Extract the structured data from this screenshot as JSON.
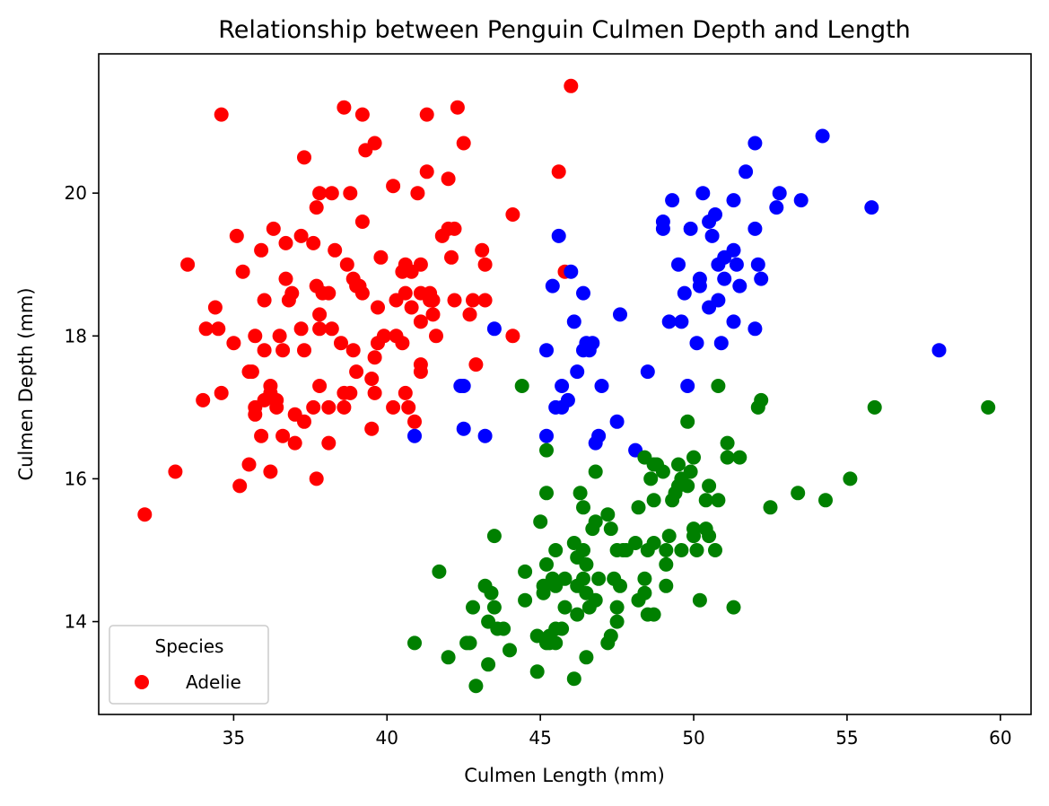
{
  "chart_data": {
    "type": "scatter",
    "title": "Relationship between Penguin Culmen Depth and Length",
    "xlabel": "Culmen Length (mm)",
    "ylabel": "Culmen Depth (mm)",
    "xlim": [
      30.6,
      61.0
    ],
    "ylim": [
      12.7,
      21.95
    ],
    "xticks": [
      35,
      40,
      45,
      50,
      55,
      60
    ],
    "yticks": [
      14,
      16,
      18,
      20
    ],
    "grid": false,
    "legend": {
      "title": "Species",
      "placement": "lower-left",
      "entries": [
        {
          "label": "Adelie",
          "color": "#ff0000"
        }
      ]
    },
    "series": [
      {
        "color": "#ff0000",
        "points": [
          [
            32.1,
            15.5
          ],
          [
            33.1,
            16.1
          ],
          [
            33.5,
            19.0
          ],
          [
            34.0,
            17.1
          ],
          [
            34.1,
            18.1
          ],
          [
            34.4,
            18.4
          ],
          [
            34.5,
            18.1
          ],
          [
            34.6,
            21.1
          ],
          [
            34.6,
            17.2
          ],
          [
            35.0,
            17.9
          ],
          [
            35.1,
            19.4
          ],
          [
            35.2,
            15.9
          ],
          [
            35.3,
            18.9
          ],
          [
            35.5,
            16.2
          ],
          [
            35.5,
            17.5
          ],
          [
            35.6,
            17.5
          ],
          [
            35.7,
            18.0
          ],
          [
            35.7,
            17.0
          ],
          [
            35.7,
            16.9
          ],
          [
            35.9,
            19.2
          ],
          [
            35.9,
            16.6
          ],
          [
            36.0,
            17.8
          ],
          [
            36.0,
            18.5
          ],
          [
            36.0,
            17.1
          ],
          [
            36.2,
            17.3
          ],
          [
            36.2,
            16.1
          ],
          [
            36.2,
            17.2
          ],
          [
            36.3,
            19.5
          ],
          [
            36.4,
            17.0
          ],
          [
            36.4,
            17.1
          ],
          [
            36.5,
            18.0
          ],
          [
            36.6,
            17.8
          ],
          [
            36.6,
            16.6
          ],
          [
            36.7,
            19.3
          ],
          [
            36.7,
            18.8
          ],
          [
            36.8,
            18.5
          ],
          [
            36.9,
            18.6
          ],
          [
            37.0,
            16.9
          ],
          [
            37.0,
            16.5
          ],
          [
            37.2,
            19.4
          ],
          [
            37.2,
            18.1
          ],
          [
            37.3,
            20.5
          ],
          [
            37.3,
            16.8
          ],
          [
            37.3,
            17.8
          ],
          [
            37.6,
            19.3
          ],
          [
            37.6,
            17.0
          ],
          [
            37.7,
            16.0
          ],
          [
            37.7,
            18.7
          ],
          [
            37.7,
            19.8
          ],
          [
            37.8,
            20.0
          ],
          [
            37.8,
            18.3
          ],
          [
            37.8,
            18.1
          ],
          [
            37.8,
            17.3
          ],
          [
            37.9,
            18.6
          ],
          [
            38.1,
            18.6
          ],
          [
            38.1,
            16.5
          ],
          [
            38.1,
            17.0
          ],
          [
            38.2,
            20.0
          ],
          [
            38.2,
            18.1
          ],
          [
            38.3,
            19.2
          ],
          [
            38.5,
            17.9
          ],
          [
            38.6,
            21.2
          ],
          [
            38.6,
            17.2
          ],
          [
            38.6,
            17.0
          ],
          [
            38.7,
            19.0
          ],
          [
            38.8,
            17.2
          ],
          [
            38.8,
            20.0
          ],
          [
            38.9,
            17.8
          ],
          [
            38.9,
            18.8
          ],
          [
            39.0,
            17.5
          ],
          [
            39.0,
            18.7
          ],
          [
            39.1,
            18.7
          ],
          [
            39.2,
            19.6
          ],
          [
            39.2,
            18.6
          ],
          [
            39.2,
            21.1
          ],
          [
            39.3,
            20.6
          ],
          [
            39.5,
            17.4
          ],
          [
            39.5,
            16.7
          ],
          [
            39.6,
            17.7
          ],
          [
            39.6,
            20.7
          ],
          [
            39.6,
            17.2
          ],
          [
            39.7,
            18.4
          ],
          [
            39.7,
            17.9
          ],
          [
            39.8,
            19.1
          ],
          [
            39.9,
            18.0
          ],
          [
            40.2,
            17.0
          ],
          [
            40.2,
            20.1
          ],
          [
            40.3,
            18.5
          ],
          [
            40.3,
            18.0
          ],
          [
            40.5,
            17.9
          ],
          [
            40.5,
            18.9
          ],
          [
            40.6,
            19.0
          ],
          [
            40.6,
            18.6
          ],
          [
            40.6,
            17.2
          ],
          [
            40.7,
            17.0
          ],
          [
            40.8,
            18.4
          ],
          [
            40.8,
            18.9
          ],
          [
            40.9,
            16.8
          ],
          [
            41.0,
            20.0
          ],
          [
            41.1,
            17.5
          ],
          [
            41.1,
            18.6
          ],
          [
            41.1,
            19.0
          ],
          [
            41.1,
            18.2
          ],
          [
            41.1,
            17.6
          ],
          [
            41.3,
            20.3
          ],
          [
            41.3,
            21.1
          ],
          [
            41.4,
            18.6
          ],
          [
            41.4,
            18.5
          ],
          [
            41.5,
            18.3
          ],
          [
            41.5,
            18.5
          ],
          [
            41.6,
            18.0
          ],
          [
            41.8,
            19.4
          ],
          [
            42.0,
            20.2
          ],
          [
            42.0,
            19.5
          ],
          [
            42.1,
            19.1
          ],
          [
            42.2,
            19.5
          ],
          [
            42.2,
            18.5
          ],
          [
            42.3,
            21.2
          ],
          [
            42.5,
            20.7
          ],
          [
            42.7,
            18.3
          ],
          [
            42.8,
            18.5
          ],
          [
            42.9,
            17.6
          ],
          [
            43.1,
            19.2
          ],
          [
            43.2,
            19.0
          ],
          [
            43.2,
            18.5
          ],
          [
            44.1,
            19.7
          ],
          [
            44.1,
            18.0
          ],
          [
            45.6,
            20.3
          ],
          [
            45.8,
            18.9
          ],
          [
            46.0,
            21.5
          ]
        ]
      },
      {
        "color": "#0000ff",
        "points": [
          [
            40.9,
            16.6
          ],
          [
            42.4,
            17.3
          ],
          [
            42.5,
            17.3
          ],
          [
            42.5,
            16.7
          ],
          [
            43.2,
            16.6
          ],
          [
            43.5,
            18.1
          ],
          [
            45.2,
            17.8
          ],
          [
            45.2,
            16.6
          ],
          [
            45.4,
            18.7
          ],
          [
            45.5,
            17.0
          ],
          [
            45.6,
            19.4
          ],
          [
            45.7,
            17.3
          ],
          [
            45.7,
            17.0
          ],
          [
            45.9,
            17.1
          ],
          [
            46.0,
            18.9
          ],
          [
            46.1,
            18.2
          ],
          [
            46.2,
            17.5
          ],
          [
            46.4,
            18.6
          ],
          [
            46.4,
            17.8
          ],
          [
            46.5,
            17.9
          ],
          [
            46.6,
            17.8
          ],
          [
            46.7,
            17.9
          ],
          [
            46.8,
            16.5
          ],
          [
            46.9,
            16.6
          ],
          [
            47.0,
            17.3
          ],
          [
            47.5,
            16.8
          ],
          [
            47.6,
            18.3
          ],
          [
            48.1,
            16.4
          ],
          [
            48.5,
            17.5
          ],
          [
            49.0,
            19.5
          ],
          [
            49.0,
            19.6
          ],
          [
            49.2,
            18.2
          ],
          [
            49.3,
            19.9
          ],
          [
            49.5,
            19.0
          ],
          [
            49.6,
            18.2
          ],
          [
            49.7,
            18.6
          ],
          [
            49.8,
            17.3
          ],
          [
            49.9,
            19.5
          ],
          [
            50.1,
            17.9
          ],
          [
            50.2,
            18.8
          ],
          [
            50.2,
            18.7
          ],
          [
            50.3,
            20.0
          ],
          [
            50.5,
            18.4
          ],
          [
            50.5,
            19.6
          ],
          [
            50.6,
            19.4
          ],
          [
            50.7,
            19.7
          ],
          [
            50.8,
            18.5
          ],
          [
            50.8,
            19.0
          ],
          [
            50.9,
            17.9
          ],
          [
            51.0,
            18.8
          ],
          [
            51.0,
            19.1
          ],
          [
            51.3,
            19.9
          ],
          [
            51.3,
            19.2
          ],
          [
            51.3,
            18.2
          ],
          [
            51.4,
            19.0
          ],
          [
            51.5,
            18.7
          ],
          [
            51.7,
            20.3
          ],
          [
            52.0,
            19.5
          ],
          [
            52.0,
            18.1
          ],
          [
            52.0,
            20.7
          ],
          [
            52.1,
            19.0
          ],
          [
            52.2,
            18.8
          ],
          [
            52.7,
            19.8
          ],
          [
            52.8,
            20.0
          ],
          [
            53.5,
            19.9
          ],
          [
            54.2,
            20.8
          ],
          [
            55.8,
            19.8
          ],
          [
            58.0,
            17.8
          ]
        ]
      },
      {
        "color": "#008000",
        "points": [
          [
            40.9,
            13.7
          ],
          [
            41.7,
            14.7
          ],
          [
            42.0,
            13.5
          ],
          [
            42.6,
            13.7
          ],
          [
            42.7,
            13.7
          ],
          [
            42.8,
            14.2
          ],
          [
            42.9,
            13.1
          ],
          [
            43.2,
            14.5
          ],
          [
            43.3,
            13.4
          ],
          [
            43.3,
            14.0
          ],
          [
            43.4,
            14.4
          ],
          [
            43.5,
            14.2
          ],
          [
            43.5,
            15.2
          ],
          [
            43.6,
            13.9
          ],
          [
            43.8,
            13.9
          ],
          [
            44.0,
            13.6
          ],
          [
            44.4,
            17.3
          ],
          [
            44.5,
            14.3
          ],
          [
            44.5,
            14.7
          ],
          [
            44.9,
            13.3
          ],
          [
            44.9,
            13.8
          ],
          [
            45.0,
            15.4
          ],
          [
            45.1,
            14.5
          ],
          [
            45.1,
            14.4
          ],
          [
            45.2,
            13.7
          ],
          [
            45.2,
            14.8
          ],
          [
            45.2,
            16.4
          ],
          [
            45.2,
            15.8
          ],
          [
            45.3,
            13.7
          ],
          [
            45.3,
            13.8
          ],
          [
            45.4,
            14.6
          ],
          [
            45.5,
            13.7
          ],
          [
            45.5,
            13.9
          ],
          [
            45.5,
            15.0
          ],
          [
            45.5,
            14.5
          ],
          [
            45.7,
            13.9
          ],
          [
            45.8,
            14.2
          ],
          [
            45.8,
            14.6
          ],
          [
            46.1,
            13.2
          ],
          [
            46.1,
            15.1
          ],
          [
            46.2,
            14.5
          ],
          [
            46.2,
            14.1
          ],
          [
            46.2,
            14.9
          ],
          [
            46.3,
            15.8
          ],
          [
            46.4,
            14.6
          ],
          [
            46.4,
            15.6
          ],
          [
            46.4,
            15.0
          ],
          [
            46.5,
            14.4
          ],
          [
            46.5,
            14.8
          ],
          [
            46.5,
            13.5
          ],
          [
            46.6,
            14.2
          ],
          [
            46.7,
            15.3
          ],
          [
            46.8,
            14.3
          ],
          [
            46.8,
            16.1
          ],
          [
            46.8,
            15.4
          ],
          [
            46.9,
            14.6
          ],
          [
            47.2,
            15.5
          ],
          [
            47.2,
            13.7
          ],
          [
            47.3,
            13.8
          ],
          [
            47.3,
            15.3
          ],
          [
            47.4,
            14.6
          ],
          [
            47.5,
            14.0
          ],
          [
            47.5,
            15.0
          ],
          [
            47.5,
            14.2
          ],
          [
            47.6,
            14.5
          ],
          [
            47.7,
            15.0
          ],
          [
            47.8,
            15.0
          ],
          [
            48.1,
            15.1
          ],
          [
            48.2,
            14.3
          ],
          [
            48.2,
            15.6
          ],
          [
            48.4,
            14.6
          ],
          [
            48.4,
            14.4
          ],
          [
            48.4,
            16.3
          ],
          [
            48.5,
            14.1
          ],
          [
            48.5,
            15.0
          ],
          [
            48.6,
            16.0
          ],
          [
            48.7,
            14.1
          ],
          [
            48.7,
            15.7
          ],
          [
            48.7,
            16.2
          ],
          [
            48.7,
            15.1
          ],
          [
            48.8,
            16.2
          ],
          [
            49.0,
            16.1
          ],
          [
            49.1,
            14.5
          ],
          [
            49.1,
            14.8
          ],
          [
            49.1,
            15.0
          ],
          [
            49.2,
            15.2
          ],
          [
            49.3,
            15.7
          ],
          [
            49.4,
            15.8
          ],
          [
            49.5,
            15.9
          ],
          [
            49.5,
            16.2
          ],
          [
            49.6,
            15.0
          ],
          [
            49.6,
            16.0
          ],
          [
            49.8,
            16.8
          ],
          [
            49.8,
            15.9
          ],
          [
            49.9,
            16.1
          ],
          [
            50.0,
            15.2
          ],
          [
            50.0,
            15.3
          ],
          [
            50.0,
            16.3
          ],
          [
            50.1,
            15.0
          ],
          [
            50.2,
            14.3
          ],
          [
            50.4,
            15.7
          ],
          [
            50.4,
            15.3
          ],
          [
            50.5,
            15.9
          ],
          [
            50.5,
            15.2
          ],
          [
            50.7,
            15.0
          ],
          [
            50.8,
            15.7
          ],
          [
            50.8,
            17.3
          ],
          [
            51.1,
            16.5
          ],
          [
            51.1,
            16.3
          ],
          [
            51.3,
            14.2
          ],
          [
            51.5,
            16.3
          ],
          [
            52.1,
            17.0
          ],
          [
            52.2,
            17.1
          ],
          [
            52.5,
            15.6
          ],
          [
            53.4,
            15.8
          ],
          [
            54.3,
            15.7
          ],
          [
            55.1,
            16.0
          ],
          [
            55.9,
            17.0
          ],
          [
            59.6,
            17.0
          ]
        ]
      }
    ]
  }
}
